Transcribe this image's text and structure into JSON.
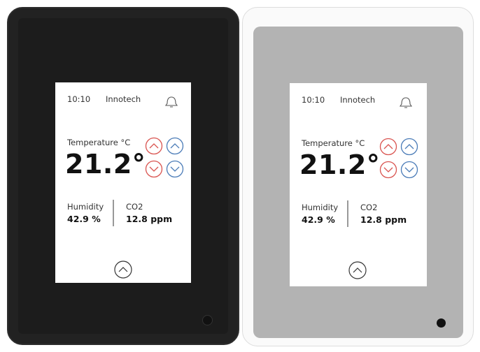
{
  "devices": [
    {
      "time": "10:10",
      "brand": "Innotech",
      "temperature_label": "Temperature °C",
      "temperature": "21.2°",
      "humidity_label": "Humidity",
      "humidity": "42.9 %",
      "co2_label": "CO2",
      "co2": "12.8 ppm"
    },
    {
      "time": "10:10",
      "brand": "Innotech",
      "temperature_label": "Temperature °C",
      "temperature": "21.2°",
      "humidity_label": "Humidity",
      "humidity": "42.9 %",
      "co2_label": "CO2",
      "co2": "12.8 ppm"
    }
  ]
}
